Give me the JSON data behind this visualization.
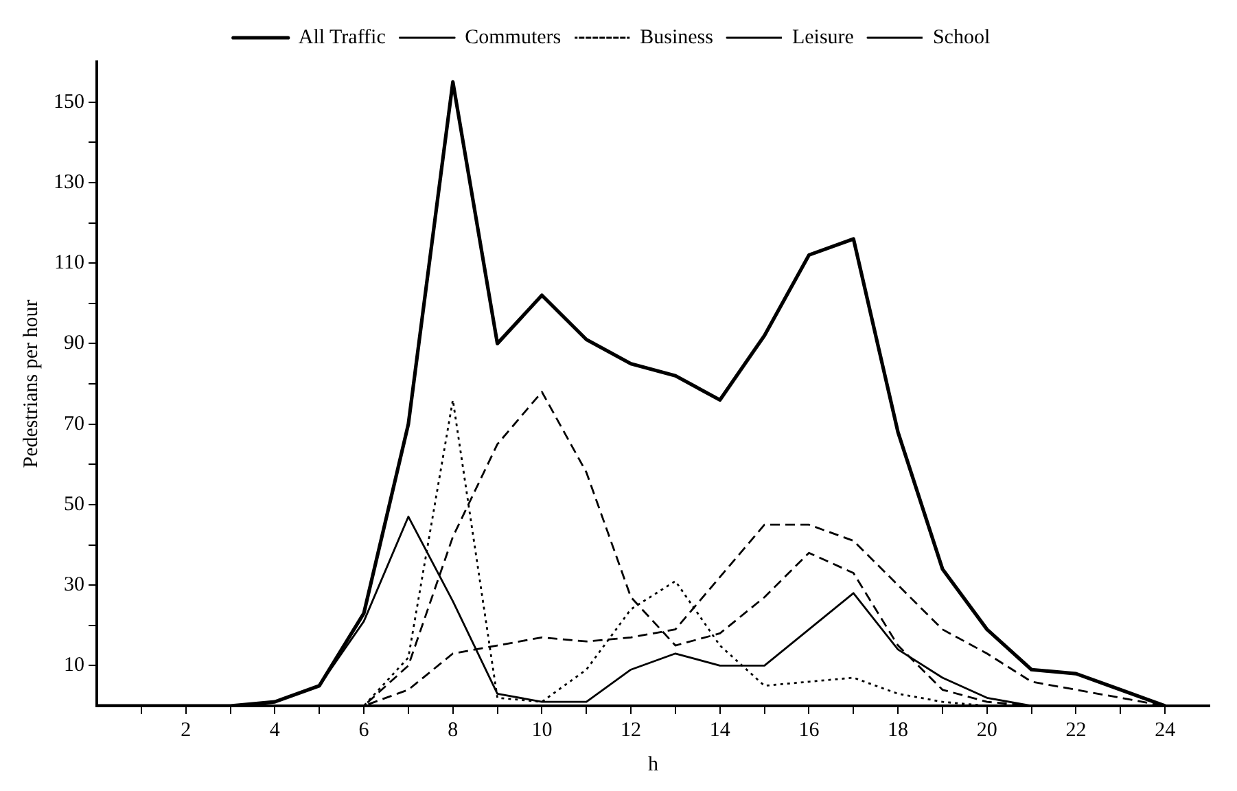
{
  "chart_data": {
    "type": "line",
    "ylabel": "Pedestrians per hour",
    "xlabel": "h",
    "x": [
      0,
      1,
      2,
      3,
      4,
      5,
      6,
      7,
      8,
      9,
      10,
      11,
      12,
      13,
      14,
      15,
      16,
      17,
      18,
      19,
      20,
      21,
      22,
      23,
      24
    ],
    "series": [
      {
        "name": "All Traffic",
        "color": "#000000",
        "line_style": "solid",
        "values": [
          0,
          0,
          0,
          0,
          1,
          5,
          23,
          70,
          155,
          90,
          102,
          91,
          85,
          82,
          76,
          92,
          112,
          116,
          68,
          34,
          19,
          9,
          8,
          4,
          0
        ]
      },
      {
        "name": "Commuters",
        "color": "#000000",
        "line_style": "solid",
        "values": [
          0,
          0,
          0,
          0,
          1,
          5,
          21,
          47,
          26,
          3,
          1,
          1,
          9,
          13,
          10,
          10,
          19,
          28,
          14,
          7,
          2,
          0,
          0,
          0,
          0
        ]
      },
      {
        "name": "Business",
        "color": "#000000",
        "line_style": "dotted",
        "values": [
          0,
          0,
          0,
          0,
          0,
          0,
          0,
          12,
          76,
          2,
          1,
          9,
          24,
          31,
          15,
          5,
          6,
          7,
          3,
          1,
          0,
          0,
          0,
          0,
          0
        ]
      },
      {
        "name": "Leisure",
        "color": "#000000",
        "line_style": "dashed",
        "values": [
          0,
          0,
          0,
          0,
          0,
          0,
          0,
          4,
          13,
          15,
          17,
          16,
          17,
          19,
          32,
          45,
          45,
          41,
          30,
          19,
          13,
          6,
          4,
          2,
          0
        ]
      },
      {
        "name": "School",
        "color": "#000000",
        "line_style": "dashed",
        "values": [
          0,
          0,
          0,
          0,
          0,
          0,
          0,
          10,
          42,
          65,
          78,
          58,
          27,
          15,
          18,
          27,
          38,
          33,
          15,
          4,
          1,
          0,
          0,
          0,
          0
        ]
      }
    ],
    "xlim": [
      0,
      25
    ],
    "xticks": [
      {
        "value": 1,
        "label": null
      },
      2,
      {
        "value": 3,
        "label": null
      },
      4,
      {
        "value": 5,
        "label": null
      },
      6,
      {
        "value": 7,
        "label": null
      },
      8,
      {
        "value": 9,
        "label": null
      },
      10,
      {
        "value": 11,
        "label": null
      },
      12,
      {
        "value": 13,
        "label": null
      },
      14,
      {
        "value": 15,
        "label": null
      },
      16,
      {
        "value": 17,
        "label": null
      },
      18,
      {
        "value": 19,
        "label": null
      },
      20,
      {
        "value": 21,
        "label": null
      },
      22,
      {
        "value": 23,
        "label": null
      },
      24
    ],
    "ylim": [
      0,
      160
    ],
    "yticks": [
      10,
      {
        "value": 20,
        "label": null
      },
      30,
      {
        "value": 40,
        "label": null
      },
      50,
      {
        "value": 60,
        "label": null
      },
      70,
      {
        "value": 80,
        "label": null
      },
      90,
      {
        "value": 100,
        "label": null
      },
      110,
      {
        "value": 120,
        "label": null
      },
      130,
      {
        "value": 140,
        "label": null
      },
      150
    ],
    "grid": false,
    "legend": "top",
    "marker": "none"
  }
}
